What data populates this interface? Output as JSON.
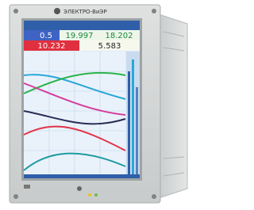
{
  "device": {
    "brand": "ЭЛЕКТРО-ВиЭР"
  },
  "screen": {
    "readings": [
      "0.5",
      "19.997",
      "18.202",
      "10.232",
      "5.583"
    ]
  }
}
